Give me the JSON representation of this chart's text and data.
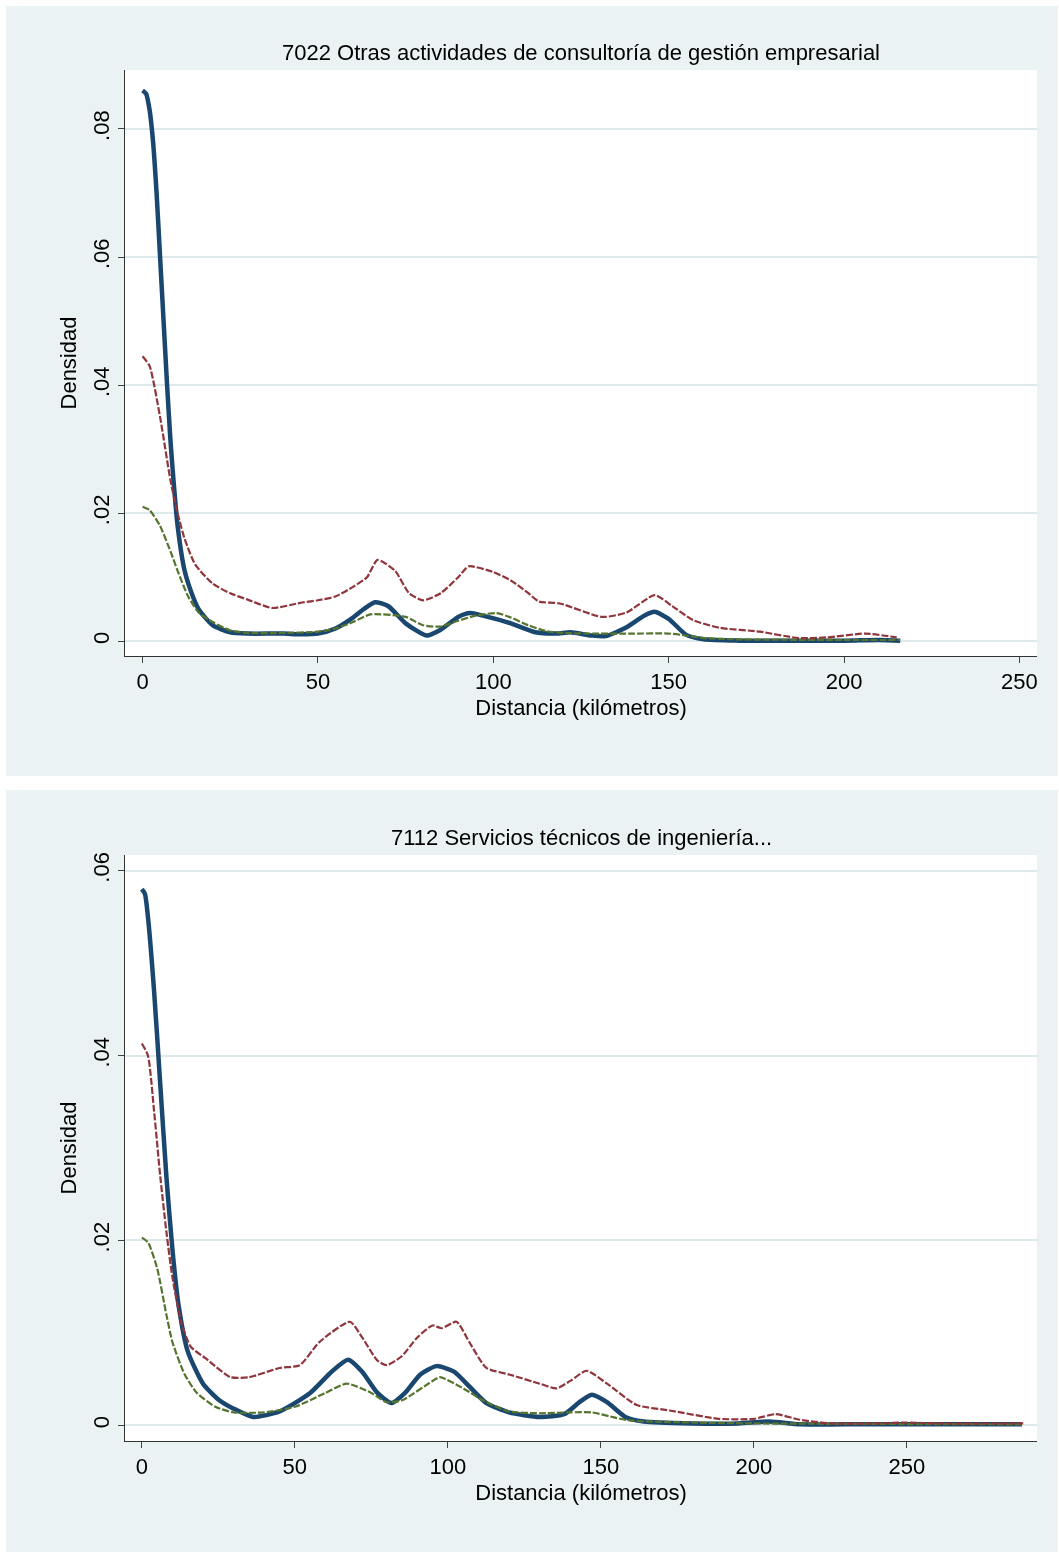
{
  "chart_data": [
    {
      "type": "line",
      "title": "7022 Otras actividades de consultoría de gestión empresarial",
      "xlabel": "Distancia (kilómetros)",
      "ylabel": "Densidad",
      "xlim": [
        -5,
        255
      ],
      "xticks": [
        0,
        50,
        100,
        150,
        200,
        250
      ],
      "ylim": [
        -0.0023,
        0.0892
      ],
      "yticks": [
        {
          "value": 0,
          "label": "0"
        },
        {
          "value": 0.02,
          "label": ".02"
        },
        {
          "value": 0.04,
          "label": ".04"
        },
        {
          "value": 0.06,
          "label": ".06"
        },
        {
          "value": 0.08,
          "label": ".08"
        }
      ],
      "grid": "y",
      "marker": "none",
      "series": [
        {
          "color": "#90353b",
          "line_style": "dashed",
          "x": [
            0,
            2,
            5,
            8,
            10,
            12,
            15,
            20,
            25,
            30,
            37,
            45,
            50,
            55,
            60,
            64,
            67,
            72,
            76,
            80,
            85,
            90,
            93,
            100,
            105,
            110,
            113,
            119,
            131,
            138,
            146,
            151,
            157,
            164.6,
            176,
            187,
            195,
            206,
            215
          ],
          "values": [
            0.0445,
            0.043,
            0.035,
            0.025,
            0.02,
            0.016,
            0.012,
            0.009,
            0.0075,
            0.0065,
            0.0052,
            0.006,
            0.0064,
            0.007,
            0.0085,
            0.01,
            0.0127,
            0.011,
            0.0075,
            0.0064,
            0.0075,
            0.01,
            0.0117,
            0.0108,
            0.0095,
            0.0075,
            0.0062,
            0.0059,
            0.0038,
            0.0045,
            0.0072,
            0.0055,
            0.0033,
            0.0021,
            0.0015,
            0.0005,
            0.0006,
            0.0012,
            0.0006
          ]
        },
        {
          "color": "#55752f",
          "line_style": "dashed",
          "x": [
            0,
            2,
            5,
            8,
            10,
            13,
            16,
            20,
            25,
            30,
            40,
            50,
            55,
            60,
            65,
            75,
            80,
            85,
            90,
            95,
            101,
            105,
            110,
            115,
            120,
            130,
            140,
            150,
            155,
            160,
            170,
            200,
            216
          ],
          "values": [
            0.021,
            0.0205,
            0.018,
            0.014,
            0.011,
            0.007,
            0.0045,
            0.003,
            0.0017,
            0.0013,
            0.0013,
            0.0015,
            0.002,
            0.003,
            0.0042,
            0.0038,
            0.0025,
            0.0023,
            0.0032,
            0.004,
            0.0044,
            0.0037,
            0.0025,
            0.0016,
            0.0013,
            0.0012,
            0.0012,
            0.0012,
            0.0009,
            0.0005,
            0.0003,
            0.0002,
            0.0002
          ]
        },
        {
          "color": "#1a476f",
          "line_style": "solid",
          "x": [
            0,
            1,
            2,
            3,
            4,
            5,
            6,
            7,
            8,
            9,
            10,
            12,
            14,
            16,
            20,
            25,
            30,
            40,
            45,
            50,
            55,
            60,
            63,
            66.3,
            70,
            75,
            81,
            85,
            90,
            93.4,
            97,
            105,
            112,
            118,
            122,
            128,
            132,
            138,
            143,
            146,
            150,
            155,
            160,
            170,
            200,
            210,
            216
          ],
          "values": [
            0.086,
            0.0855,
            0.083,
            0.078,
            0.07,
            0.06,
            0.05,
            0.04,
            0.031,
            0.024,
            0.018,
            0.011,
            0.0075,
            0.005,
            0.0025,
            0.0014,
            0.0012,
            0.0012,
            0.0011,
            0.0012,
            0.002,
            0.0037,
            0.005,
            0.0061,
            0.0055,
            0.0028,
            0.0009,
            0.0018,
            0.0038,
            0.0044,
            0.004,
            0.0028,
            0.0014,
            0.0012,
            0.0014,
            0.0009,
            0.0008,
            0.0022,
            0.004,
            0.0046,
            0.0035,
            0.001,
            0.0003,
            0.0001,
            0.0001,
            0.0002,
            0.0001
          ]
        }
      ]
    },
    {
      "type": "line",
      "title": "7112 Servicios técnicos de ingeniería...",
      "xlabel": "Distancia (kilómetros)",
      "ylabel": "Densidad",
      "xlim": [
        -5.5,
        292.5
      ],
      "xticks": [
        0,
        50,
        100,
        150,
        200,
        250
      ],
      "ylim": [
        -0.0017,
        0.0617
      ],
      "yticks": [
        {
          "value": 0,
          "label": "0"
        },
        {
          "value": 0.02,
          "label": ".02"
        },
        {
          "value": 0.04,
          "label": ".04"
        },
        {
          "value": 0.06,
          "label": ".06"
        }
      ],
      "grid": "y",
      "marker": "none",
      "series": [
        {
          "color": "#90353b",
          "line_style": "dashed",
          "x": [
            0,
            2,
            4,
            6,
            8,
            10,
            13,
            16,
            21,
            29,
            35,
            45,
            51.6,
            58,
            68,
            72,
            77,
            80,
            85,
            90,
            95,
            98,
            102.8,
            107,
            112.6,
            120,
            130,
            135.5,
            140,
            145.3,
            152,
            161.7,
            172.5,
            188.6,
            200,
            207,
            215,
            225,
            240,
            250,
            260,
            288
          ],
          "values": [
            0.0413,
            0.04,
            0.034,
            0.027,
            0.021,
            0.016,
            0.011,
            0.0085,
            0.0072,
            0.0052,
            0.0052,
            0.0062,
            0.0065,
            0.009,
            0.0112,
            0.0095,
            0.007,
            0.0065,
            0.0075,
            0.0095,
            0.0108,
            0.0105,
            0.0112,
            0.009,
            0.0062,
            0.0055,
            0.0045,
            0.004,
            0.0048,
            0.0059,
            0.0045,
            0.0022,
            0.0016,
            0.0007,
            0.0007,
            0.0012,
            0.0006,
            0.0002,
            0.0002,
            0.0003,
            0.0002,
            0.0002
          ]
        },
        {
          "color": "#55752f",
          "line_style": "dashed",
          "x": [
            0,
            2,
            5,
            8,
            10,
            14,
            18,
            24,
            30,
            40,
            50,
            60,
            67,
            75,
            80,
            85,
            95,
            97.4,
            105,
            112,
            120,
            130,
            140,
            147,
            155,
            160,
            180,
            200,
            287.6
          ],
          "values": [
            0.0203,
            0.0198,
            0.017,
            0.012,
            0.009,
            0.0055,
            0.0035,
            0.002,
            0.0014,
            0.0014,
            0.002,
            0.0035,
            0.0045,
            0.0035,
            0.0025,
            0.0027,
            0.0048,
            0.0052,
            0.004,
            0.0026,
            0.0015,
            0.0013,
            0.0014,
            0.0014,
            0.0008,
            0.0005,
            0.0003,
            0.0002,
            0.0001
          ]
        },
        {
          "color": "#1a476f",
          "line_style": "solid",
          "x": [
            0,
            1,
            2,
            4,
            6,
            8,
            10,
            12,
            15,
            20,
            25,
            30,
            36.4,
            45,
            55,
            62,
            67.4,
            72,
            77,
            81.6,
            86,
            91,
            96.3,
            102,
            107,
            112.6,
            120,
            130,
            138,
            143,
            147,
            152,
            158,
            164,
            180,
            195,
            205,
            215,
            230,
            287.6
          ],
          "values": [
            0.058,
            0.0575,
            0.055,
            0.047,
            0.037,
            0.027,
            0.019,
            0.013,
            0.008,
            0.0045,
            0.0028,
            0.0018,
            0.0009,
            0.0015,
            0.0035,
            0.0058,
            0.0071,
            0.0058,
            0.0035,
            0.0024,
            0.0035,
            0.0055,
            0.0064,
            0.0058,
            0.0042,
            0.0024,
            0.0014,
            0.0009,
            0.0012,
            0.0025,
            0.0033,
            0.0025,
            0.0009,
            0.0004,
            0.0002,
            0.0002,
            0.0004,
            0.0001,
            0.0001,
            0.0001
          ]
        }
      ]
    }
  ]
}
